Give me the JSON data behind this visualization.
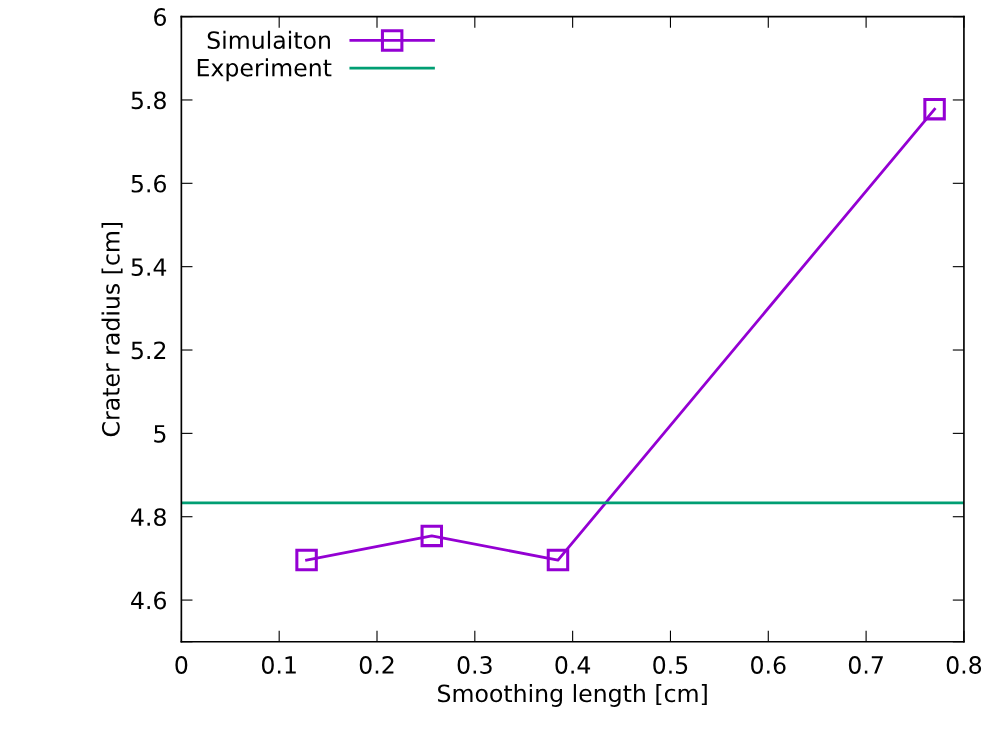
{
  "chart_data": {
    "type": "line",
    "xlabel": "Smoothing length [cm]",
    "ylabel": "Crater radius [cm]",
    "xlim": [
      0,
      0.8
    ],
    "ylim": [
      4.5,
      6
    ],
    "xticks": [
      {
        "value": 0,
        "label": "0"
      },
      0.1,
      0.2,
      0.3,
      0.4,
      0.5,
      0.6,
      0.7,
      0.8
    ],
    "yticks": [
      {
        "value": 4.5,
        "label": null
      },
      4.6,
      4.8,
      {
        "value": 5,
        "label": "5"
      },
      5.2,
      5.4,
      5.6,
      5.8,
      {
        "value": 6,
        "label": "6"
      }
    ],
    "grid": false,
    "legend": "top left",
    "series": [
      {
        "name": "Simulaiton",
        "color": "#9400d3",
        "marker": "square",
        "x": [
          0.128,
          0.256,
          0.385,
          0.77
        ],
        "values": [
          4.696,
          4.754,
          4.696,
          5.778
        ]
      },
      {
        "name": "Experiment",
        "color": "#009e73",
        "marker": "none",
        "x": [
          0,
          0.8
        ],
        "values": [
          4.833,
          4.833
        ]
      }
    ]
  }
}
